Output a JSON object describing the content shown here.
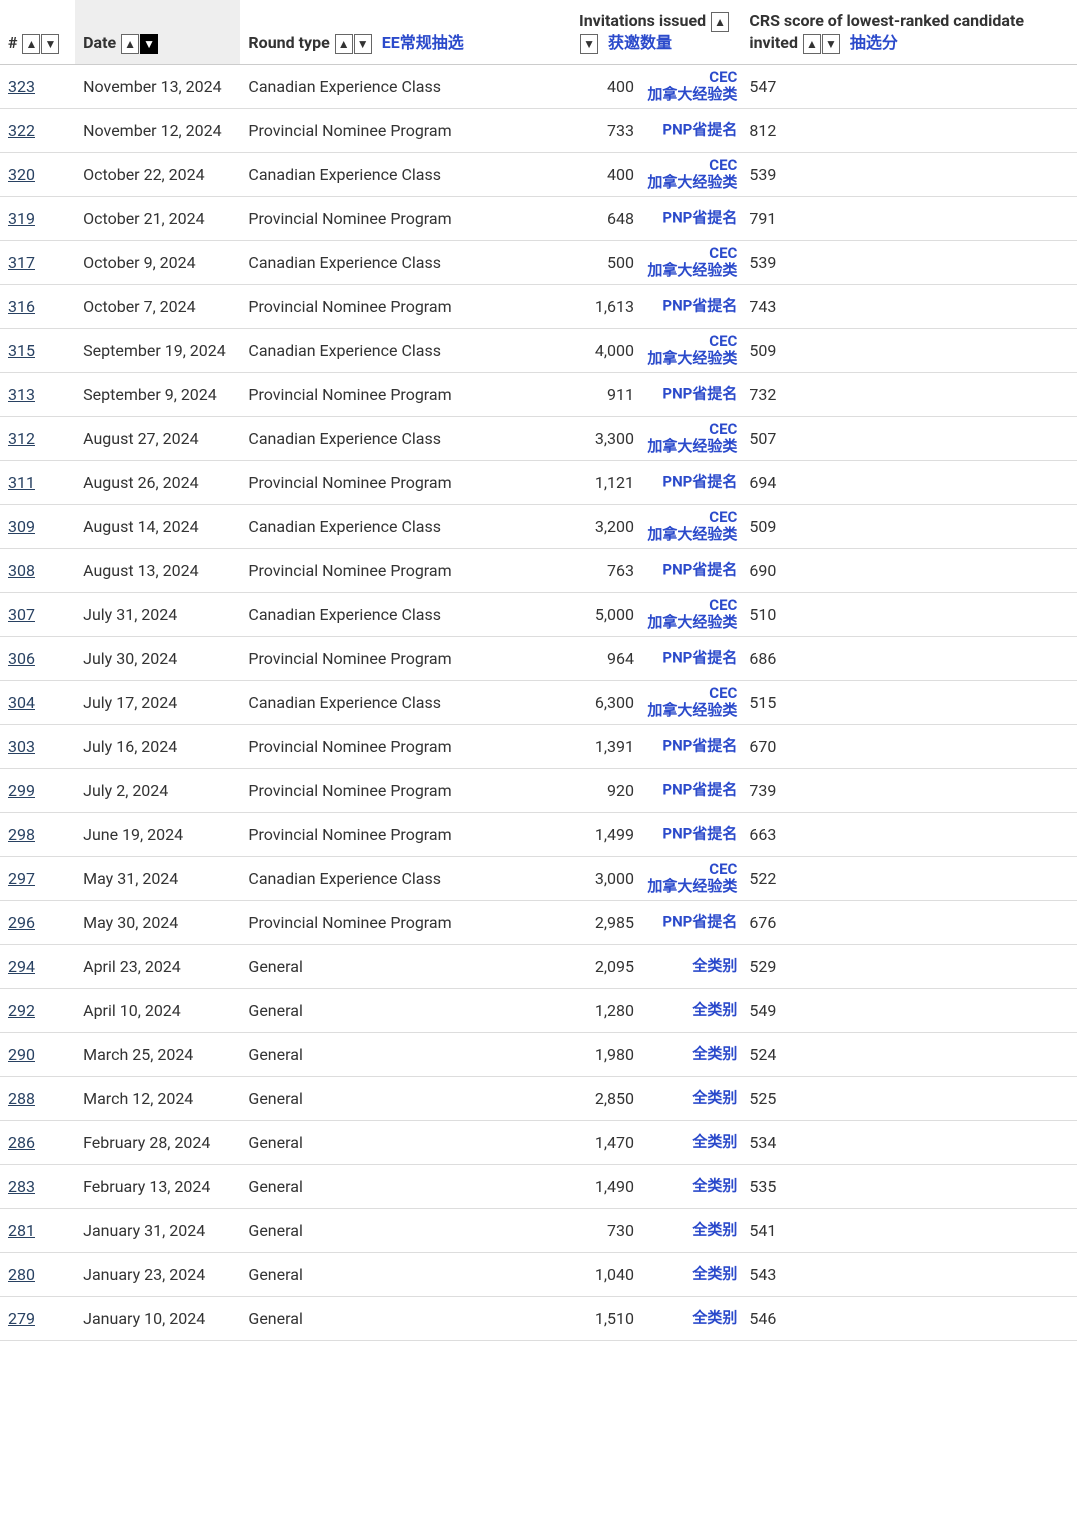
{
  "columns": {
    "num": {
      "label": "#"
    },
    "date": {
      "label": "Date"
    },
    "type": {
      "label": "Round type",
      "cn": "EE常规抽选"
    },
    "inv": {
      "label": "Invitations issued",
      "cn": "获邀数量"
    },
    "crs": {
      "label": "CRS score of lowest-ranked candidate invited",
      "cn": "抽选分"
    }
  },
  "badges": {
    "cec": {
      "l1": "CEC",
      "l2": "加拿大经验类"
    },
    "pnp": {
      "l1": "PNP省提名"
    },
    "gen": {
      "l1": "全类别"
    }
  },
  "rows": [
    {
      "num": "323",
      "date": "November 13, 2024",
      "type": "Canadian Experience Class",
      "inv": "400",
      "badge": "cec",
      "crs": "547"
    },
    {
      "num": "322",
      "date": "November 12, 2024",
      "type": "Provincial Nominee Program",
      "inv": "733",
      "badge": "pnp",
      "crs": "812"
    },
    {
      "num": "320",
      "date": "October 22, 2024",
      "type": "Canadian Experience Class",
      "inv": "400",
      "badge": "cec",
      "crs": "539"
    },
    {
      "num": "319",
      "date": "October 21, 2024",
      "type": "Provincial Nominee Program",
      "inv": "648",
      "badge": "pnp",
      "crs": "791"
    },
    {
      "num": "317",
      "date": "October 9, 2024",
      "type": "Canadian Experience Class",
      "inv": "500",
      "badge": "cec",
      "crs": "539"
    },
    {
      "num": "316",
      "date": "October 7, 2024",
      "type": "Provincial Nominee Program",
      "inv": "1,613",
      "badge": "pnp",
      "crs": "743"
    },
    {
      "num": "315",
      "date": "September 19, 2024",
      "type": "Canadian Experience Class",
      "inv": "4,000",
      "badge": "cec",
      "crs": "509"
    },
    {
      "num": "313",
      "date": "September 9, 2024",
      "type": "Provincial Nominee Program",
      "inv": "911",
      "badge": "pnp",
      "crs": "732"
    },
    {
      "num": "312",
      "date": "August 27, 2024",
      "type": "Canadian Experience Class",
      "inv": "3,300",
      "badge": "cec",
      "crs": "507"
    },
    {
      "num": "311",
      "date": "August 26, 2024",
      "type": "Provincial Nominee Program",
      "inv": "1,121",
      "badge": "pnp",
      "crs": "694"
    },
    {
      "num": "309",
      "date": "August 14, 2024",
      "type": "Canadian Experience Class",
      "inv": "3,200",
      "badge": "cec",
      "crs": "509"
    },
    {
      "num": "308",
      "date": "August 13, 2024",
      "type": "Provincial Nominee Program",
      "inv": "763",
      "badge": "pnp",
      "crs": "690"
    },
    {
      "num": "307",
      "date": "July 31, 2024",
      "type": "Canadian Experience Class",
      "inv": "5,000",
      "badge": "cec",
      "crs": "510"
    },
    {
      "num": "306",
      "date": "July 30, 2024",
      "type": "Provincial Nominee Program",
      "inv": "964",
      "badge": "pnp",
      "crs": "686"
    },
    {
      "num": "304",
      "date": "July 17, 2024",
      "type": "Canadian Experience Class",
      "inv": "6,300",
      "badge": "cec",
      "crs": "515"
    },
    {
      "num": "303",
      "date": "July 16, 2024",
      "type": "Provincial Nominee Program",
      "inv": "1,391",
      "badge": "pnp",
      "crs": "670"
    },
    {
      "num": "299",
      "date": "July 2, 2024",
      "type": "Provincial Nominee Program",
      "inv": "920",
      "badge": "pnp",
      "crs": "739"
    },
    {
      "num": "298",
      "date": "June 19, 2024",
      "type": "Provincial Nominee Program",
      "inv": "1,499",
      "badge": "pnp",
      "crs": "663"
    },
    {
      "num": "297",
      "date": "May 31, 2024",
      "type": "Canadian Experience Class",
      "inv": "3,000",
      "badge": "cec",
      "crs": "522"
    },
    {
      "num": "296",
      "date": "May 30, 2024",
      "type": "Provincial Nominee Program",
      "inv": "2,985",
      "badge": "pnp",
      "crs": "676"
    },
    {
      "num": "294",
      "date": "April 23, 2024",
      "type": "General",
      "inv": "2,095",
      "badge": "gen",
      "crs": "529"
    },
    {
      "num": "292",
      "date": "April 10, 2024",
      "type": "General",
      "inv": "1,280",
      "badge": "gen",
      "crs": "549"
    },
    {
      "num": "290",
      "date": "March 25, 2024",
      "type": "General",
      "inv": "1,980",
      "badge": "gen",
      "crs": "524"
    },
    {
      "num": "288",
      "date": "March 12, 2024",
      "type": "General",
      "inv": "2,850",
      "badge": "gen",
      "crs": "525"
    },
    {
      "num": "286",
      "date": "February 28, 2024",
      "type": "General",
      "inv": "1,470",
      "badge": "gen",
      "crs": "534"
    },
    {
      "num": "283",
      "date": "February 13, 2024",
      "type": "General",
      "inv": "1,490",
      "badge": "gen",
      "crs": "535"
    },
    {
      "num": "281",
      "date": "January 31, 2024",
      "type": "General",
      "inv": "730",
      "badge": "gen",
      "crs": "541"
    },
    {
      "num": "280",
      "date": "January 23, 2024",
      "type": "General",
      "inv": "1,040",
      "badge": "gen",
      "crs": "543"
    },
    {
      "num": "279",
      "date": "January 10, 2024",
      "type": "General",
      "inv": "1,510",
      "badge": "gen",
      "crs": "546"
    }
  ],
  "colors": {
    "link": "#284162",
    "cn": "#2b4acb",
    "border": "#ddd"
  }
}
